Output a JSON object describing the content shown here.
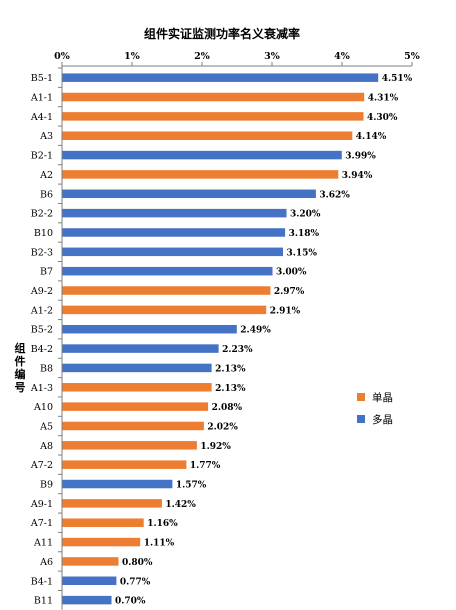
{
  "chart_data": {
    "type": "bar",
    "orientation": "horizontal",
    "title": "组件实证监测功率名义衰减率",
    "xlabel": "",
    "ylabel": "组件编号",
    "xlim": [
      0,
      5
    ],
    "x_ticks": [
      "0%",
      "1%",
      "2%",
      "3%",
      "4%",
      "5%"
    ],
    "x_axis_position": "top",
    "legend_position": "right",
    "series": [
      {
        "name": "单晶",
        "color": "#ED7D31"
      },
      {
        "name": "多晶",
        "color": "#4472C4"
      }
    ],
    "categories": [
      "B5-1",
      "A1-1",
      "A4-1",
      "A3",
      "B2-1",
      "A2",
      "B6",
      "B2-2",
      "B10",
      "B2-3",
      "B7",
      "A9-2",
      "A1-2",
      "B5-2",
      "B4-2",
      "B8",
      "A1-3",
      "A10",
      "A5",
      "A8",
      "A7-2",
      "B9",
      "A9-1",
      "A7-1",
      "A11",
      "A6",
      "B4-1",
      "B11"
    ],
    "values": [
      4.51,
      4.31,
      4.3,
      4.14,
      3.99,
      3.94,
      3.62,
      3.2,
      3.18,
      3.15,
      3.0,
      2.97,
      2.91,
      2.49,
      2.23,
      2.13,
      2.13,
      2.08,
      2.02,
      1.92,
      1.77,
      1.57,
      1.42,
      1.16,
      1.11,
      0.8,
      0.77,
      0.7
    ],
    "value_labels": [
      "4.51%",
      "4.31%",
      "4.30%",
      "4.14%",
      "3.99%",
      "3.94%",
      "3.62%",
      "3.20%",
      "3.18%",
      "3.15%",
      "3.00%",
      "2.97%",
      "2.91%",
      "2.49%",
      "2.23%",
      "2.13%",
      "2.13%",
      "2.08%",
      "2.02%",
      "1.92%",
      "1.77%",
      "1.57%",
      "1.42%",
      "1.16%",
      "1.11%",
      "0.80%",
      "0.77%",
      "0.70%"
    ],
    "series_index": [
      1,
      0,
      0,
      0,
      1,
      0,
      1,
      1,
      1,
      1,
      1,
      0,
      0,
      1,
      1,
      1,
      0,
      0,
      0,
      0,
      0,
      1,
      0,
      0,
      0,
      0,
      1,
      1
    ]
  }
}
